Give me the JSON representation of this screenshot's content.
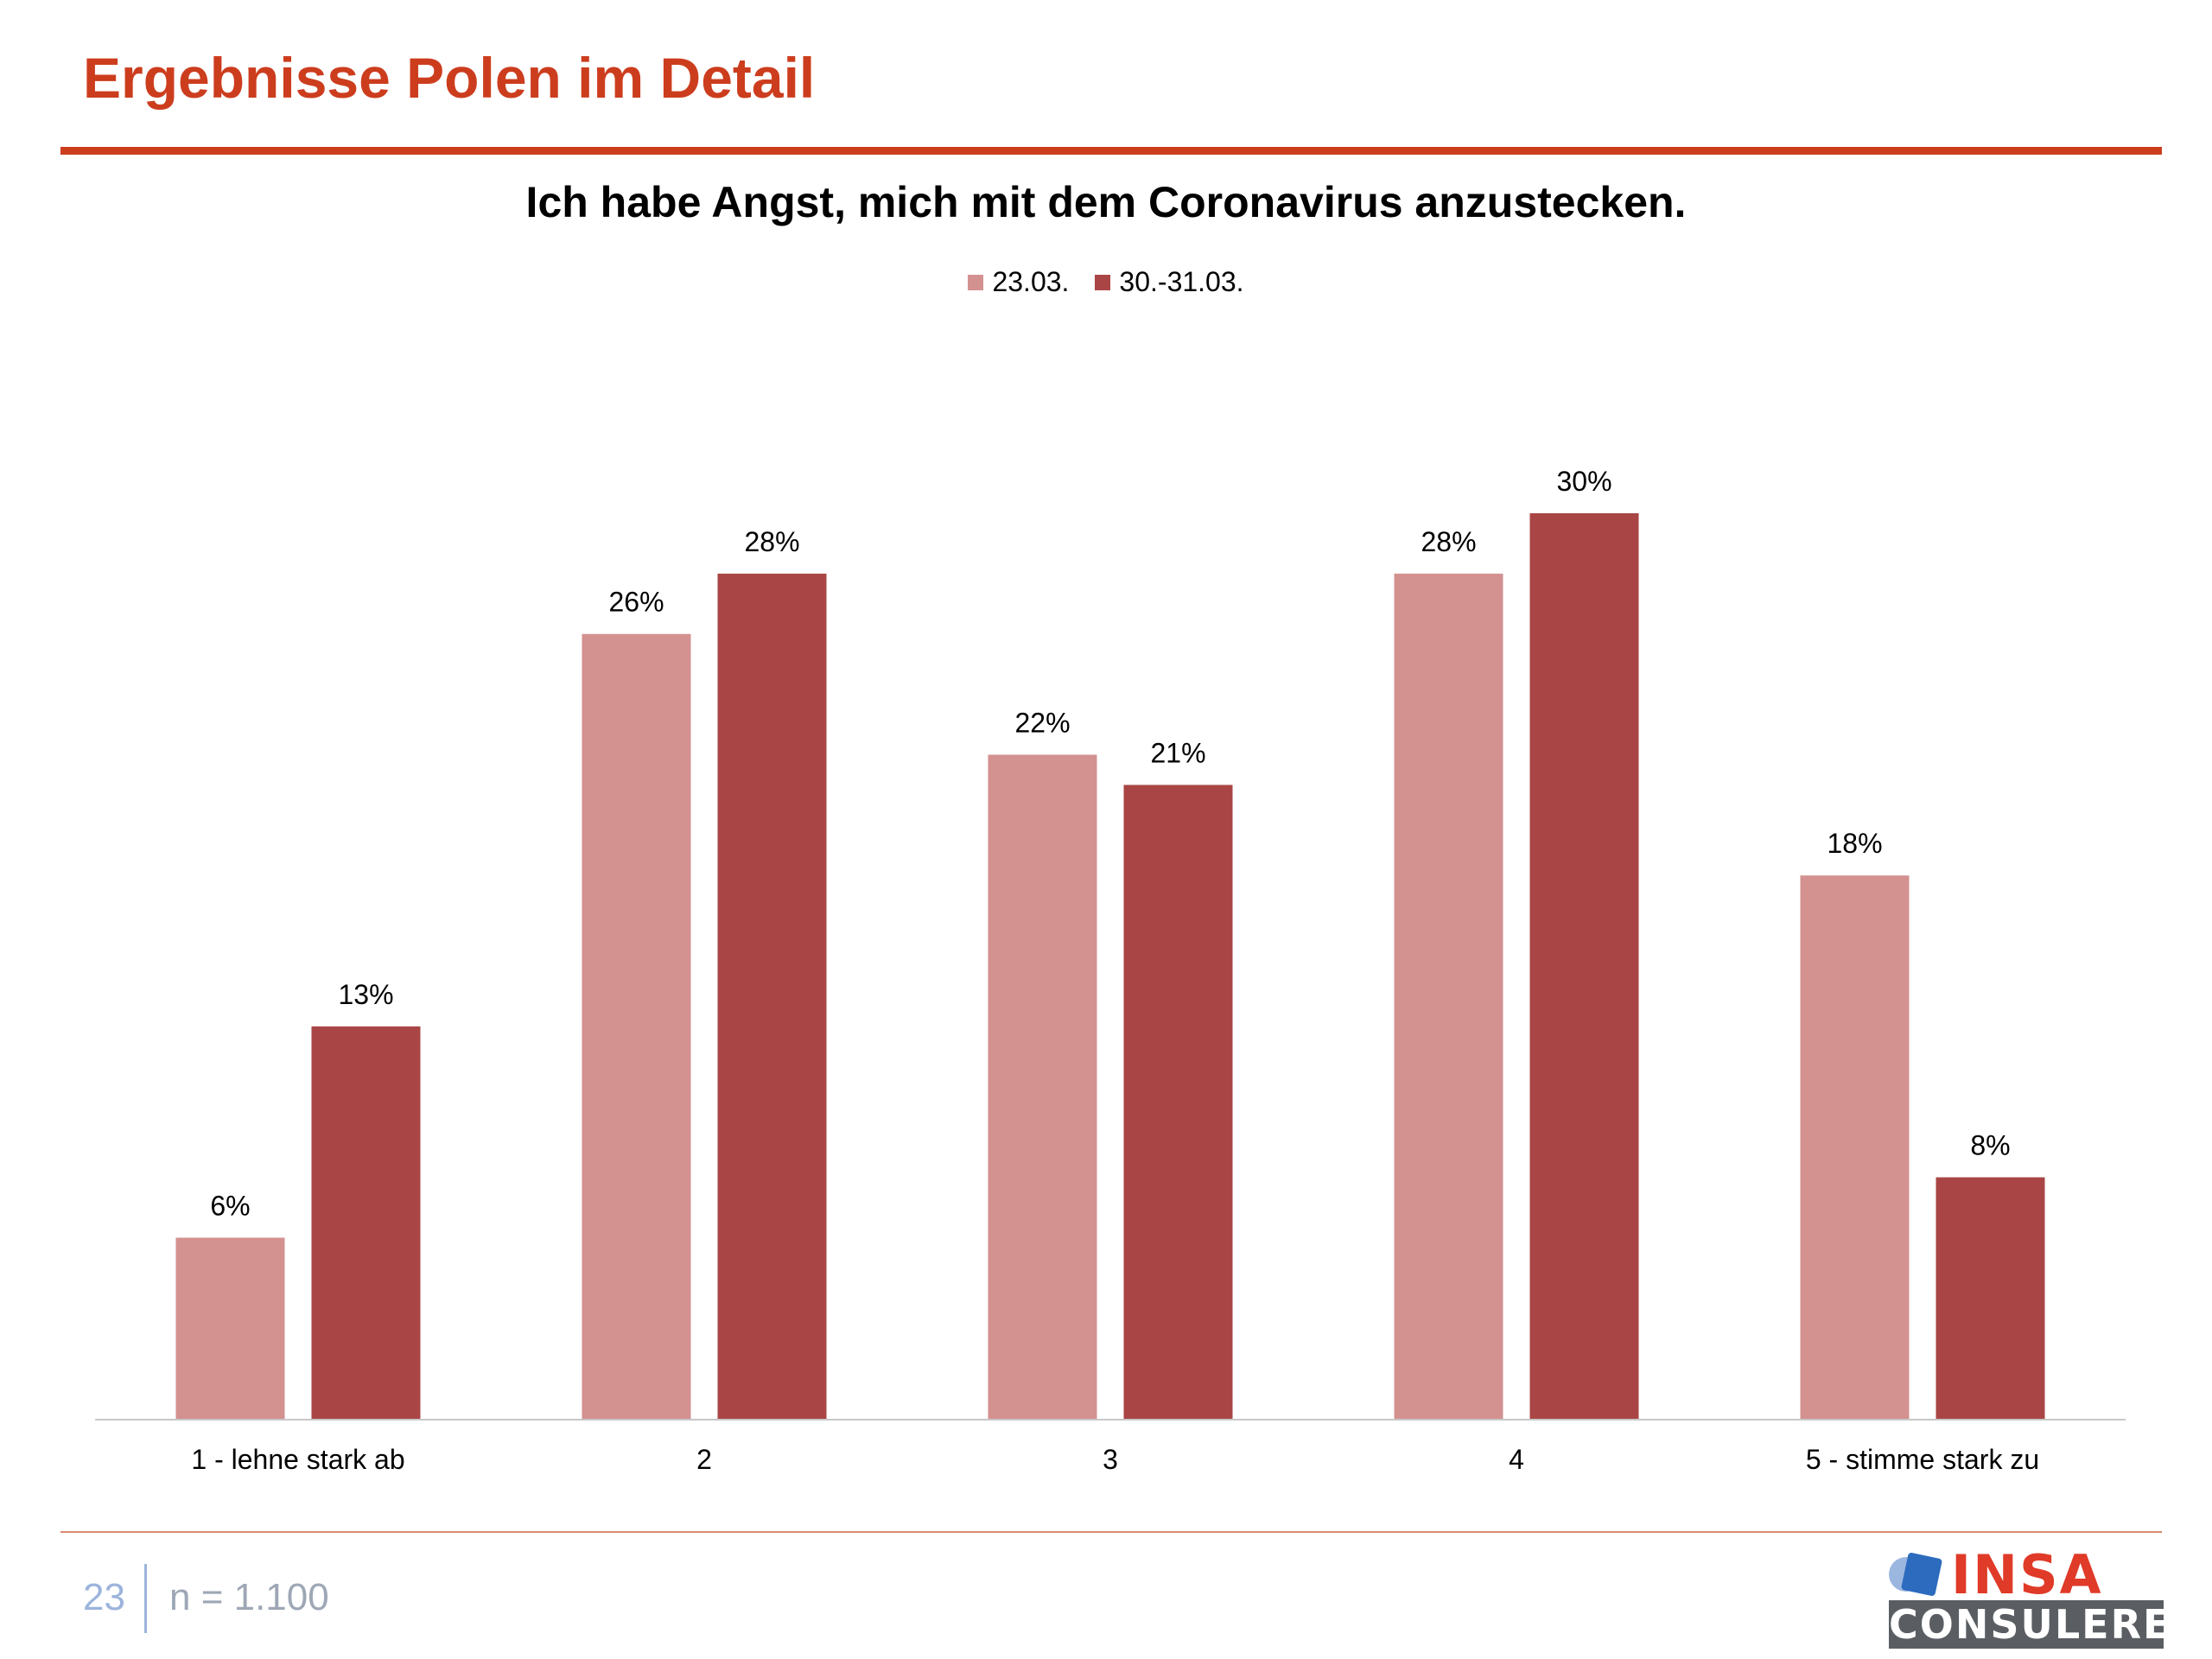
{
  "header": {
    "title": "Ergebnisse Polen im Detail"
  },
  "chart_data": {
    "type": "bar",
    "title": "Ich habe Angst, mich mit dem Coronavirus anzustecken.",
    "categories": [
      "1 - lehne stark ab",
      "2",
      "3",
      "4",
      "5 - stimme stark zu"
    ],
    "series": [
      {
        "name": "23.03.",
        "values": [
          6,
          26,
          22,
          28,
          18
        ],
        "labels": [
          "6%",
          "26%",
          "22%",
          "28%",
          "18%"
        ],
        "color": "#d39190"
      },
      {
        "name": "30.-31.03.",
        "values": [
          13,
          28,
          21,
          30,
          8
        ],
        "labels": [
          "13%",
          "28%",
          "21%",
          "30%",
          "8%"
        ],
        "color": "#a94645"
      }
    ],
    "ylim": [
      0,
      30
    ],
    "grid": false,
    "legend_position": "top"
  },
  "footer": {
    "page_number": "23",
    "sample_size": "n = 1.100"
  },
  "logo": {
    "word": "INSA",
    "sub": "CONSULERE",
    "brand_color": "#e03a28",
    "mark_color": "#2c6bbd"
  }
}
